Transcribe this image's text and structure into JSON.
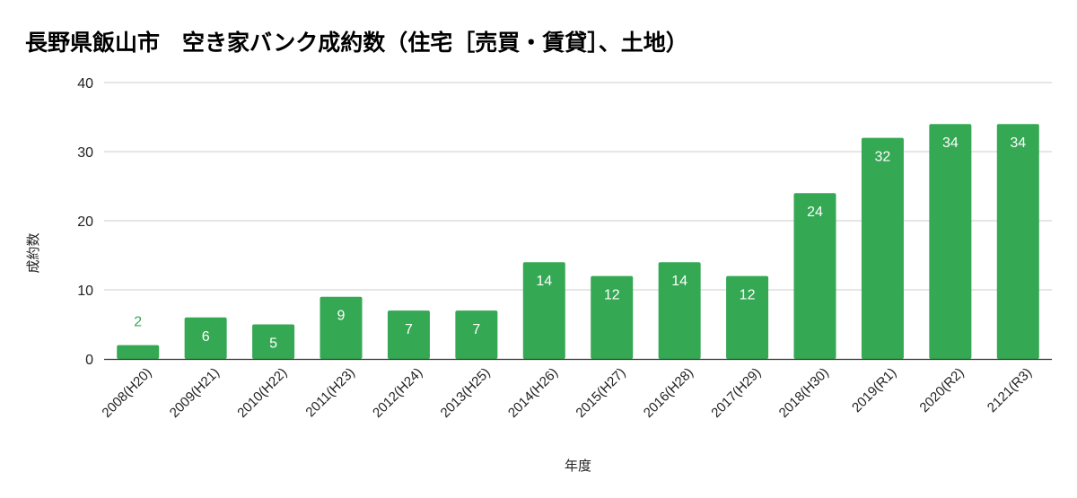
{
  "chart_data": {
    "type": "bar",
    "title": "長野県飯山市　空き家バンク成約数（住宅［売買・賃貸］、土地）",
    "xlabel": "年度",
    "ylabel": "成約数",
    "categories": [
      "2008(H20)",
      "2009(H21)",
      "2010(H22)",
      "2011(H23)",
      "2012(H24)",
      "2013(H25)",
      "2014(H26)",
      "2015(H27)",
      "2016(H28)",
      "2017(H29)",
      "2018(H30)",
      "2019(R1)",
      "2020(R2)",
      "2121(R3)"
    ],
    "values": [
      2,
      6,
      5,
      9,
      7,
      7,
      14,
      12,
      14,
      12,
      24,
      32,
      34,
      34
    ],
    "ylim": [
      0,
      40
    ],
    "yticks": [
      0,
      10,
      20,
      30,
      40
    ],
    "grid": true,
    "legend": "none",
    "colors": {
      "bar": "#34a853",
      "label_inside": "#ffffff",
      "label_outside": "#34a853",
      "grid": "#cccccc",
      "axis": "#333333"
    }
  }
}
